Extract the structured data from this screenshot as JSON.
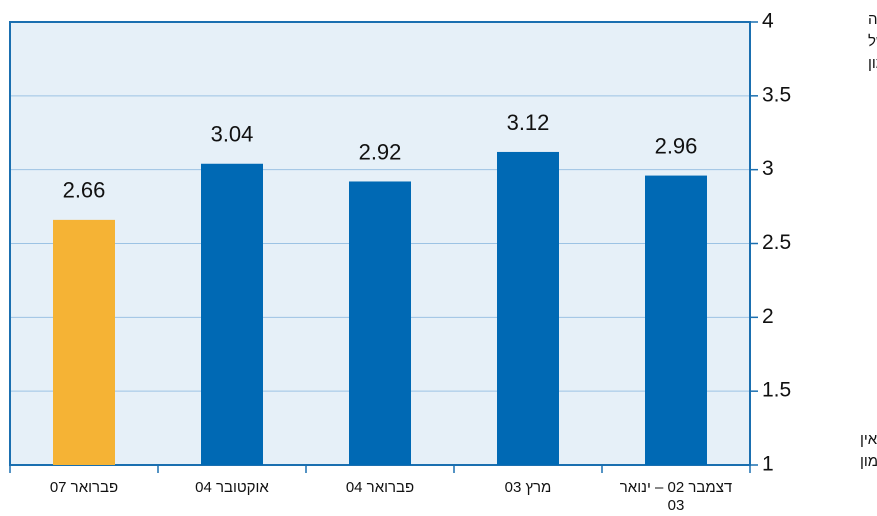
{
  "chart_data": {
    "type": "bar",
    "categories": [
      "פברואר 07",
      "אוקטובר 04",
      "פברואר 04",
      "מרץ 03",
      "דצמבר 02 – ינואר 03"
    ],
    "values": [
      2.66,
      3.04,
      2.92,
      3.12,
      2.96
    ],
    "colors": [
      "#f5b335",
      "#0069b4",
      "#0069b4",
      "#0069b4",
      "#0069b4"
    ],
    "ylim": [
      1,
      4
    ],
    "yticks": [
      1,
      1.5,
      2,
      2.5,
      3,
      3.5,
      4
    ],
    "grid": true,
    "y_axis_top_label": [
      "מידה רבה",
      "מאוד של",
      "אמון"
    ],
    "y_axis_bottom_label": [
      "כלל אין",
      "אמון"
    ]
  }
}
